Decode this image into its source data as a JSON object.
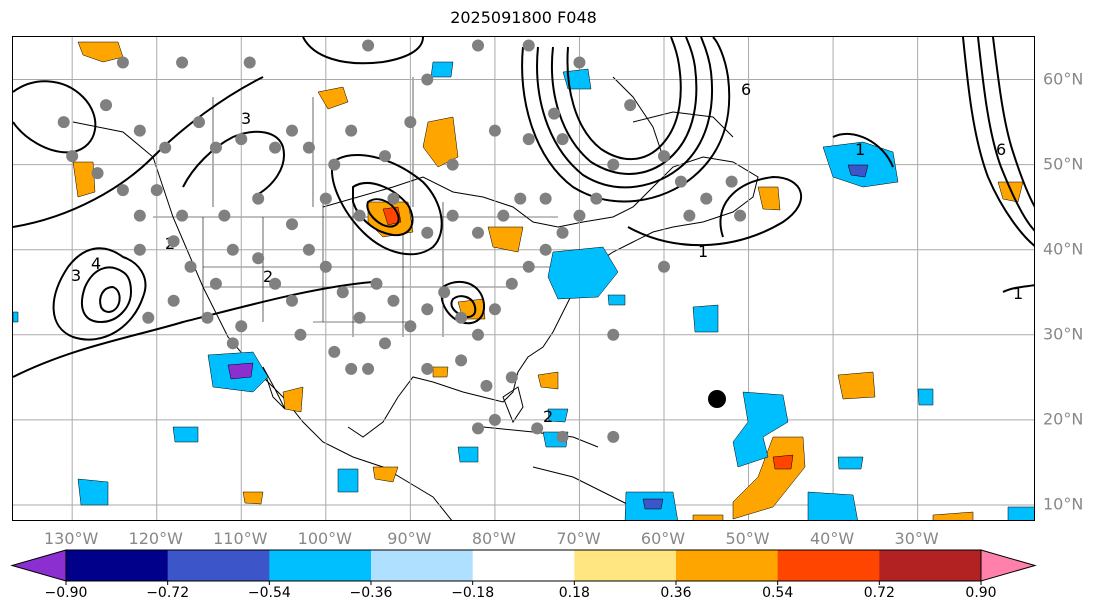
{
  "title": "2025091800 F048",
  "map": {
    "lon_range": [
      -137,
      -16
    ],
    "lat_range": [
      8,
      65
    ],
    "grid": true,
    "lon_labels": [
      "130°W",
      "120°W",
      "110°W",
      "100°W",
      "90°W",
      "80°W",
      "70°W",
      "60°W",
      "50°W",
      "40°W",
      "30°W"
    ],
    "lon_values": [
      -130,
      -120,
      -110,
      -100,
      -90,
      -80,
      -70,
      -60,
      -50,
      -40,
      -30
    ],
    "lat_labels": [
      "60°N",
      "50°N",
      "40°N",
      "30°N",
      "20°N",
      "10°N"
    ],
    "lat_values": [
      60,
      50,
      40,
      30,
      20,
      10
    ],
    "contour_labels": [
      "1",
      "1",
      "1",
      "2",
      "2",
      "3",
      "3",
      "4",
      "6",
      "6",
      "2"
    ],
    "colors": {
      "contour": "#000000",
      "station_dot": "#808080",
      "grid": "#aaaaaa",
      "axis_label": "#888888",
      "large_dot": "#000000"
    }
  },
  "colorbar": {
    "labels": [
      "−0.90",
      "−0.72",
      "−0.54",
      "−0.36",
      "−0.18",
      "0.18",
      "0.36",
      "0.54",
      "0.72",
      "0.90"
    ],
    "values": [
      -0.9,
      -0.72,
      -0.54,
      -0.36,
      -0.18,
      0.18,
      0.36,
      0.54,
      0.72,
      0.9
    ],
    "colors": [
      "#8b2fd1",
      "#00008b",
      "#3c55c8",
      "#00bfff",
      "#b0e0ff",
      "#ffffff",
      "#ffe680",
      "#ffa500",
      "#ff4500",
      "#b22222",
      "#ff80aa"
    ],
    "extend": "both"
  }
}
